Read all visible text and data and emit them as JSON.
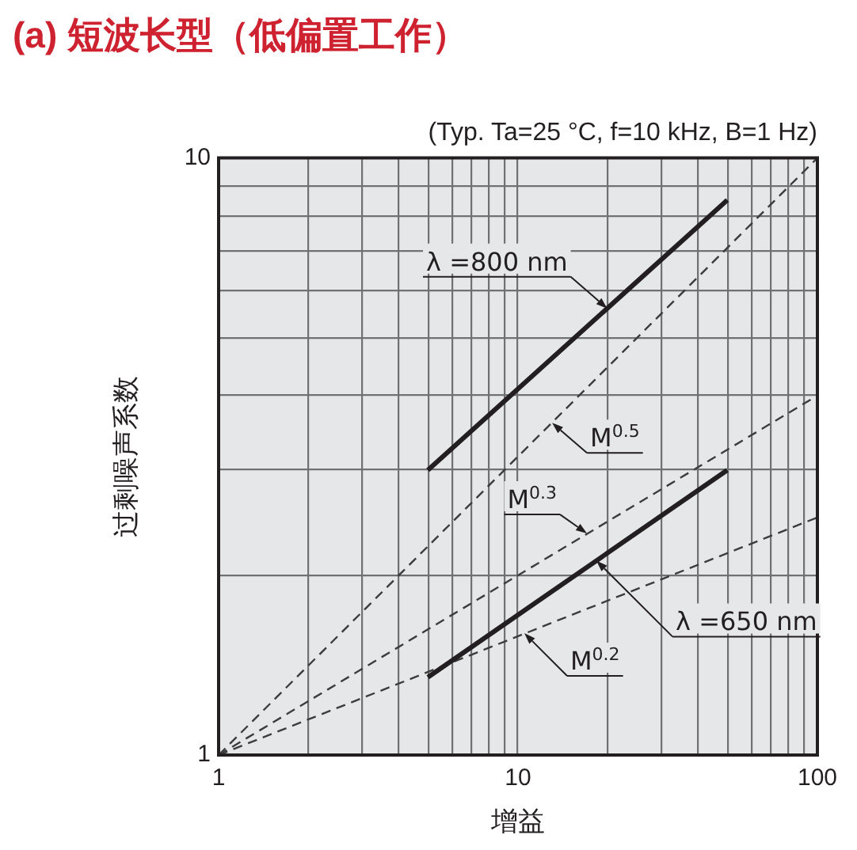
{
  "chart_data": {
    "type": "line",
    "title": "(a) 短波长型（低偏置工作）",
    "subtitle": "(Typ. Ta=25 °C, f=10 kHz, B=1 Hz)",
    "xlabel": "增益",
    "ylabel": "过剩噪声系数",
    "series": [
      {
        "name": "λ =800 nm",
        "color": "#231f20",
        "line_style": "solid",
        "x": [
          5,
          50
        ],
        "values": [
          3,
          8.5
        ]
      },
      {
        "name": "λ =650 nm",
        "color": "#231f20",
        "line_style": "solid",
        "x": [
          5,
          50
        ],
        "values": [
          1.35,
          3
        ]
      },
      {
        "color": "#3c3c3c",
        "line_style": "dashed",
        "x": [
          1,
          100
        ],
        "values": [
          1,
          10
        ]
      },
      {
        "color": "#3c3c3c",
        "line_style": "dashed",
        "x": [
          1,
          100
        ],
        "values": [
          1,
          4
        ]
      },
      {
        "color": "#3c3c3c",
        "line_style": "dashed",
        "x": [
          1,
          100
        ],
        "values": [
          1,
          2.5
        ]
      }
    ],
    "annotations": [
      {
        "text": "M$^{0.5}$",
        "x": 13,
        "y": 3.6
      },
      {
        "text": "M$^{0.3}$",
        "x": 17,
        "y": 2.35
      },
      {
        "text": "M$^{0.2}$",
        "x": 10.5,
        "y": 1.6
      }
    ],
    "xlim": [
      1,
      100
    ],
    "ylim": [
      1,
      10
    ],
    "xticks": [
      1,
      {
        "value": 2,
        "label": null
      },
      {
        "value": 3,
        "label": null
      },
      {
        "value": 4,
        "label": null
      },
      {
        "value": 5,
        "label": null
      },
      {
        "value": 6,
        "label": null
      },
      {
        "value": 7,
        "label": null
      },
      {
        "value": 8,
        "label": null
      },
      {
        "value": 9,
        "label": null
      },
      10,
      {
        "value": 20,
        "label": null
      },
      {
        "value": 30,
        "label": null
      },
      {
        "value": 40,
        "label": null
      },
      {
        "value": 50,
        "label": null
      },
      {
        "value": 60,
        "label": null
      },
      {
        "value": 70,
        "label": null
      },
      {
        "value": 80,
        "label": null
      },
      {
        "value": 90,
        "label": null
      },
      100
    ],
    "yticks": [
      1,
      {
        "value": 2,
        "label": null
      },
      {
        "value": 3,
        "label": null
      },
      {
        "value": 4,
        "label": null
      },
      {
        "value": 5,
        "label": null
      },
      {
        "value": 6,
        "label": null
      },
      {
        "value": 7,
        "label": null
      },
      {
        "value": 8,
        "label": null
      },
      {
        "value": 9,
        "label": null
      },
      10
    ],
    "log": "xy",
    "grid": true
  }
}
